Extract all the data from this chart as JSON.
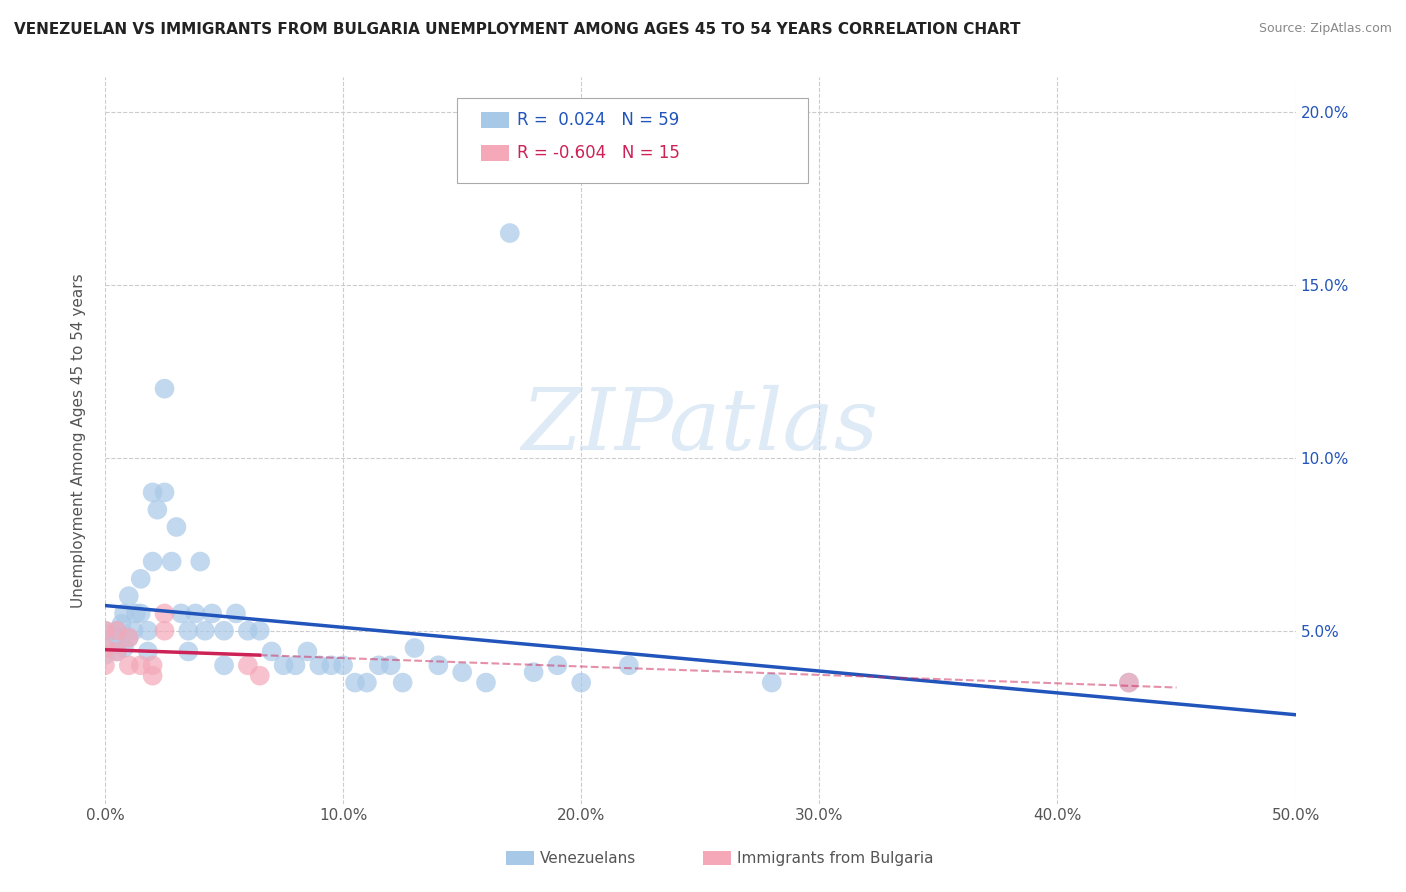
{
  "title": "VENEZUELAN VS IMMIGRANTS FROM BULGARIA UNEMPLOYMENT AMONG AGES 45 TO 54 YEARS CORRELATION CHART",
  "source": "Source: ZipAtlas.com",
  "ylabel": "Unemployment Among Ages 45 to 54 years",
  "xlim": [
    0.0,
    0.5
  ],
  "ylim": [
    0.0,
    0.21
  ],
  "x_ticks": [
    0.0,
    0.1,
    0.2,
    0.3,
    0.4,
    0.5
  ],
  "x_tick_labels": [
    "0.0%",
    "10.0%",
    "20.0%",
    "30.0%",
    "40.0%",
    "50.0%"
  ],
  "y_ticks": [
    0.0,
    0.05,
    0.1,
    0.15,
    0.2
  ],
  "y_tick_labels_right": [
    "",
    "5.0%",
    "10.0%",
    "15.0%",
    "20.0%"
  ],
  "grid_color": "#cccccc",
  "background_color": "#ffffff",
  "watermark_text": "ZIPatlas",
  "venezuelan_color": "#a8c8e8",
  "bulgarian_color": "#f4a8b8",
  "venezuelan_line_color": "#2255bb",
  "bulgarian_line_color": "#cc2255",
  "venezuelan_R": 0.024,
  "venezuelan_N": 59,
  "bulgarian_R": -0.604,
  "bulgarian_N": 15,
  "venezuelan_x": [
    0.0,
    0.0,
    0.0,
    0.005,
    0.005,
    0.005,
    0.007,
    0.008,
    0.008,
    0.01,
    0.01,
    0.012,
    0.013,
    0.015,
    0.015,
    0.018,
    0.018,
    0.02,
    0.02,
    0.022,
    0.025,
    0.025,
    0.028,
    0.03,
    0.032,
    0.035,
    0.035,
    0.038,
    0.04,
    0.042,
    0.045,
    0.05,
    0.05,
    0.055,
    0.06,
    0.065,
    0.07,
    0.075,
    0.08,
    0.085,
    0.09,
    0.095,
    0.1,
    0.105,
    0.11,
    0.115,
    0.12,
    0.125,
    0.13,
    0.14,
    0.15,
    0.16,
    0.17,
    0.18,
    0.19,
    0.2,
    0.22,
    0.28,
    0.43
  ],
  "venezuelan_y": [
    0.05,
    0.047,
    0.043,
    0.05,
    0.048,
    0.044,
    0.052,
    0.055,
    0.045,
    0.06,
    0.048,
    0.05,
    0.055,
    0.065,
    0.055,
    0.05,
    0.044,
    0.09,
    0.07,
    0.085,
    0.12,
    0.09,
    0.07,
    0.08,
    0.055,
    0.05,
    0.044,
    0.055,
    0.07,
    0.05,
    0.055,
    0.05,
    0.04,
    0.055,
    0.05,
    0.05,
    0.044,
    0.04,
    0.04,
    0.044,
    0.04,
    0.04,
    0.04,
    0.035,
    0.035,
    0.04,
    0.04,
    0.035,
    0.045,
    0.04,
    0.038,
    0.035,
    0.165,
    0.038,
    0.04,
    0.035,
    0.04,
    0.035,
    0.035
  ],
  "bulgarian_x": [
    0.0,
    0.0,
    0.0,
    0.005,
    0.005,
    0.01,
    0.01,
    0.015,
    0.02,
    0.02,
    0.025,
    0.025,
    0.06,
    0.065,
    0.43
  ],
  "bulgarian_y": [
    0.05,
    0.045,
    0.04,
    0.05,
    0.044,
    0.048,
    0.04,
    0.04,
    0.04,
    0.037,
    0.055,
    0.05,
    0.04,
    0.037,
    0.035
  ]
}
